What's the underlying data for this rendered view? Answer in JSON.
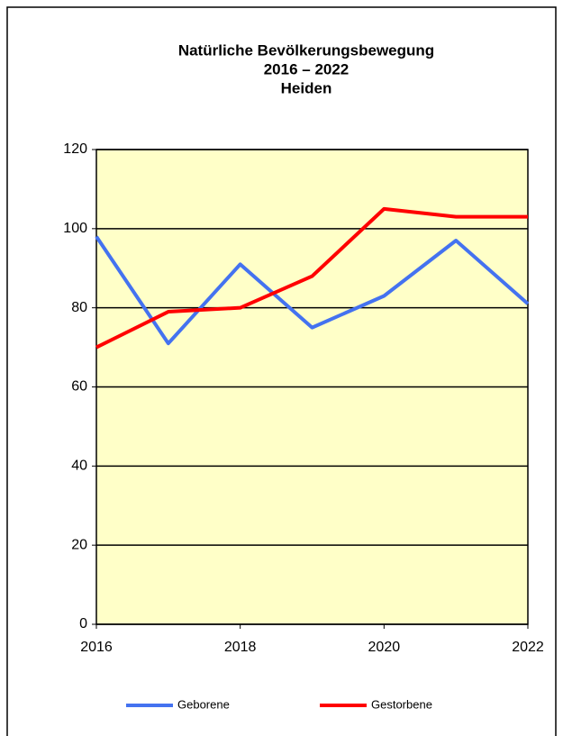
{
  "chart_data": {
    "type": "line",
    "title": [
      "Natürliche Bevölkerungsbewegung",
      "2016 – 2022",
      "Heiden"
    ],
    "x": [
      2016,
      2017,
      2018,
      2019,
      2020,
      2021,
      2022
    ],
    "series": [
      {
        "name": "Geborene",
        "color": "#4472f0",
        "values": [
          98,
          71,
          91,
          75,
          83,
          97,
          81
        ]
      },
      {
        "name": "Gestorbene",
        "color": "#ff0000",
        "values": [
          70,
          79,
          80,
          88,
          105,
          103,
          103
        ]
      }
    ],
    "xlim": [
      2016,
      2022
    ],
    "xticks": [
      2016,
      2018,
      2020,
      2022
    ],
    "ylim": [
      0,
      120
    ],
    "yticks": [
      0,
      20,
      40,
      60,
      80,
      100,
      120
    ],
    "grid": true,
    "legend": "bottom",
    "plot_background": "#ffffc8"
  }
}
